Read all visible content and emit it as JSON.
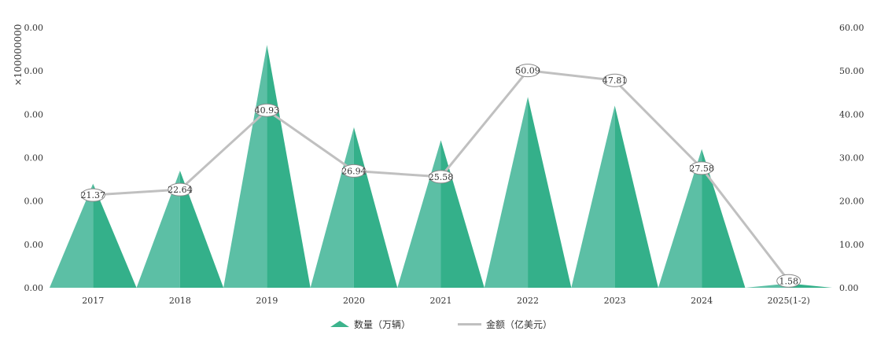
{
  "chart_data": {
    "type": "bar",
    "categories": [
      "2017",
      "2018",
      "2019",
      "2020",
      "2021",
      "2022",
      "2023",
      "2024",
      "2025(1-2)"
    ],
    "series": [
      {
        "name": "数量（万辆）",
        "type": "pictorial-bar-triangle",
        "axis": "left",
        "color": "#3cb38c",
        "values": [
          24,
          27,
          56,
          37,
          34,
          44,
          42,
          32,
          1
        ]
      },
      {
        "name": "金额（亿美元）",
        "type": "line",
        "axis": "right",
        "color": "#c0c0c0",
        "values": [
          21.37,
          22.64,
          40.93,
          26.94,
          25.58,
          50.09,
          47.81,
          27.58,
          1.58
        ]
      }
    ],
    "left_axis": {
      "multiplier_label": "×100000000",
      "ylim": [
        0,
        60
      ],
      "ticks": [
        "0.00",
        "0.00",
        "0.00",
        "0.00",
        "0.00",
        "0.00",
        "0.00"
      ]
    },
    "right_axis": {
      "ylim": [
        0,
        60
      ],
      "ticks": [
        "0.00",
        "10.00",
        "20.00",
        "30.00",
        "40.00",
        "50.00",
        "60.00"
      ]
    },
    "data_labels": [
      "21.37",
      "22.64",
      "40.93",
      "26.94",
      "25.58",
      "50.09",
      "47.81",
      "27.58",
      "1.58"
    ],
    "grid": false,
    "legend_position": "bottom-center"
  },
  "legend": {
    "items": [
      {
        "label": "数量（万辆）",
        "color": "#3cb38c"
      },
      {
        "label": "金额（亿美元）",
        "color": "#c0c0c0"
      }
    ]
  }
}
